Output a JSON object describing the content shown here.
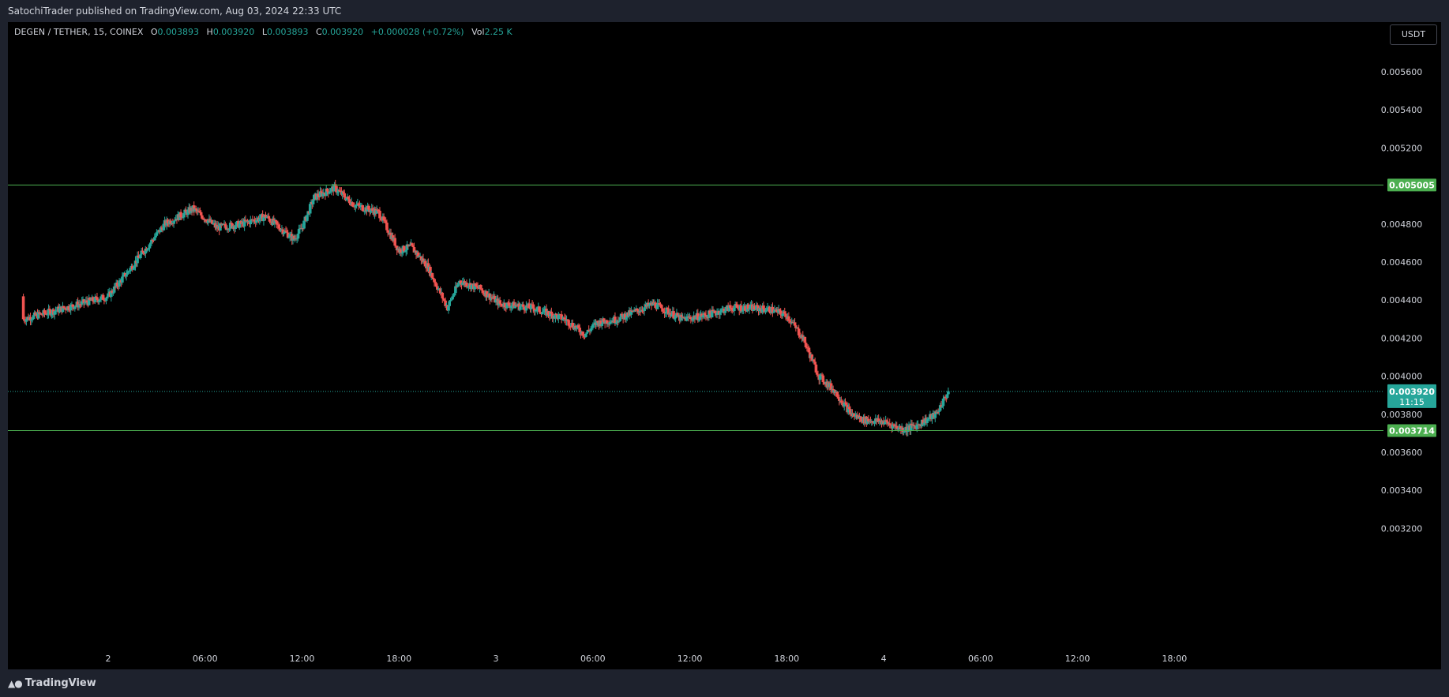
{
  "header": {
    "published_text": "SatochiTrader published on TradingView.com, Aug 03, 2024 22:33 UTC"
  },
  "legend": {
    "symbol": "DEGEN / TETHER, 15, COINEX",
    "open_label": "O",
    "open": "0.003893",
    "high_label": "H",
    "high": "0.003920",
    "low_label": "L",
    "low": "0.003893",
    "close_label": "C",
    "close": "0.003920",
    "change": "+0.000028 (+0.72%)",
    "vol_label": "Vol",
    "vol": "2.25 K"
  },
  "currency": "USDT",
  "footer": {
    "brand": "TradingView",
    "logo_icon": "tradingview-logo-icon"
  },
  "colors": {
    "up": "#26a69a",
    "down": "#ef5350",
    "level": "#4caf50",
    "background": "#000000",
    "axis_text": "#d1d4dc"
  },
  "chart_data": {
    "type": "candlestick",
    "title": "",
    "xlabel": "",
    "ylabel": "",
    "ylim": [
      0.0031,
      0.0058
    ],
    "grid": false,
    "y_ticks": [
      "0.005600",
      "0.005400",
      "0.005200",
      "0.004800",
      "0.004600",
      "0.004400",
      "0.004200",
      "0.004000",
      "0.003800",
      "0.003600",
      "0.003400",
      "0.003200"
    ],
    "x_ticks": [
      {
        "label": "2",
        "t": 0
      },
      {
        "label": "06:00",
        "t": 24
      },
      {
        "label": "12:00",
        "t": 48
      },
      {
        "label": "18:00",
        "t": 72
      },
      {
        "label": "3",
        "t": 96
      },
      {
        "label": "06:00",
        "t": 120
      },
      {
        "label": "12:00",
        "t": 144
      },
      {
        "label": "18:00",
        "t": 168
      },
      {
        "label": "4",
        "t": 192
      },
      {
        "label": "06:00",
        "t": 216
      },
      {
        "label": "12:00",
        "t": 240
      },
      {
        "label": "18:00",
        "t": 264
      }
    ],
    "horizontal_levels": [
      {
        "value": 0.005005,
        "label": "0.005005"
      },
      {
        "value": 0.003714,
        "label": "0.003714"
      }
    ],
    "last_price": {
      "value": 0.00392,
      "label": "0.003920",
      "countdown": "11:15"
    },
    "candles_start_t": -21,
    "price_anchors": [
      [
        0,
        0.00442
      ],
      [
        6,
        0.00458
      ],
      [
        14,
        0.0048
      ],
      [
        21,
        0.00488
      ],
      [
        27,
        0.00478
      ],
      [
        33,
        0.0048
      ],
      [
        39,
        0.00484
      ],
      [
        46,
        0.00472
      ],
      [
        48,
        0.00478
      ],
      [
        51,
        0.00494
      ],
      [
        56,
        0.00499
      ],
      [
        61,
        0.0049
      ],
      [
        67,
        0.00486
      ],
      [
        72,
        0.00466
      ],
      [
        75,
        0.00468
      ],
      [
        79,
        0.00458
      ],
      [
        84,
        0.00436
      ],
      [
        87,
        0.0045
      ],
      [
        92,
        0.00446
      ],
      [
        97,
        0.00438
      ],
      [
        105,
        0.00436
      ],
      [
        113,
        0.0043
      ],
      [
        118,
        0.00422
      ],
      [
        121,
        0.00428
      ],
      [
        126,
        0.0043
      ],
      [
        135,
        0.00438
      ],
      [
        142,
        0.0043
      ],
      [
        148,
        0.00432
      ],
      [
        154,
        0.00436
      ],
      [
        158,
        0.00436
      ],
      [
        164,
        0.00435
      ],
      [
        168,
        0.00432
      ],
      [
        172,
        0.0042
      ],
      [
        176,
        0.004
      ],
      [
        180,
        0.00392
      ],
      [
        184,
        0.0038
      ],
      [
        187,
        0.00377
      ],
      [
        192,
        0.00376
      ],
      [
        197,
        0.00372
      ],
      [
        200,
        0.00374
      ],
      [
        205,
        0.0038
      ],
      [
        208,
        0.00392
      ]
    ]
  }
}
